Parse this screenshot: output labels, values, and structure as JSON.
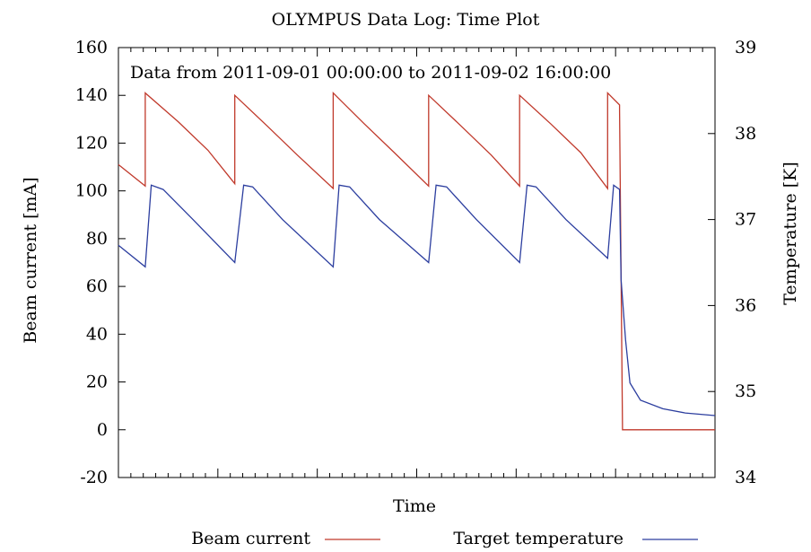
{
  "chart_data": {
    "type": "line",
    "title": "OLYMPUS Data Log: Time Plot",
    "annotation": "Data from 2011-09-01 00:00:00 to 2011-09-02 16:00:00",
    "xlabel": "Time",
    "ylabel_left": "Beam current [mA]",
    "ylabel_right": "Temperature [K]",
    "ylim_left": [
      -20,
      160
    ],
    "ylim_right": [
      34,
      39
    ],
    "yticks_left": [
      "-20",
      "0",
      "20",
      "40",
      "60",
      "80",
      "100",
      "120",
      "140",
      "160"
    ],
    "yticks_right": [
      "34",
      "35",
      "36",
      "37",
      "38",
      "39"
    ],
    "xlim": [
      0,
      40
    ],
    "grid": false,
    "legend_position": "bottom",
    "series": [
      {
        "name": "Beam current",
        "axis": "left",
        "color": "#c0392b",
        "points": [
          [
            0.0,
            111
          ],
          [
            1.8,
            102
          ],
          [
            1.8,
            141
          ],
          [
            4.0,
            129
          ],
          [
            6.0,
            117
          ],
          [
            7.8,
            103
          ],
          [
            7.8,
            140
          ],
          [
            10.0,
            127
          ],
          [
            12.0,
            115
          ],
          [
            14.4,
            101
          ],
          [
            14.4,
            141
          ],
          [
            16.5,
            128
          ],
          [
            18.5,
            116
          ],
          [
            20.8,
            102
          ],
          [
            20.8,
            140
          ],
          [
            23.0,
            127
          ],
          [
            25.0,
            115
          ],
          [
            26.9,
            102
          ],
          [
            26.9,
            140
          ],
          [
            29.0,
            128
          ],
          [
            31.0,
            116
          ],
          [
            32.8,
            101
          ],
          [
            32.8,
            141
          ],
          [
            33.6,
            136
          ],
          [
            33.6,
            134
          ],
          [
            33.8,
            0
          ],
          [
            40.0,
            0
          ]
        ]
      },
      {
        "name": "Target temperature",
        "axis": "right",
        "color": "#2c3e9f",
        "points": [
          [
            0.0,
            36.7
          ],
          [
            1.8,
            36.45
          ],
          [
            2.2,
            37.4
          ],
          [
            3.0,
            37.35
          ],
          [
            5.0,
            37.0
          ],
          [
            7.8,
            36.5
          ],
          [
            8.4,
            37.4
          ],
          [
            9.0,
            37.38
          ],
          [
            11.0,
            37.0
          ],
          [
            14.4,
            36.45
          ],
          [
            14.8,
            37.4
          ],
          [
            15.5,
            37.38
          ],
          [
            17.5,
            37.0
          ],
          [
            20.8,
            36.5
          ],
          [
            21.3,
            37.4
          ],
          [
            22.0,
            37.38
          ],
          [
            24.0,
            37.0
          ],
          [
            26.9,
            36.5
          ],
          [
            27.4,
            37.4
          ],
          [
            28.0,
            37.38
          ],
          [
            30.0,
            37.0
          ],
          [
            32.8,
            36.55
          ],
          [
            33.2,
            37.4
          ],
          [
            33.6,
            37.35
          ],
          [
            33.7,
            36.3
          ],
          [
            34.0,
            35.6
          ],
          [
            34.3,
            35.1
          ],
          [
            35.0,
            34.9
          ],
          [
            36.5,
            34.8
          ],
          [
            38.0,
            34.75
          ],
          [
            40.0,
            34.72
          ]
        ]
      }
    ]
  },
  "colors": {
    "beam": "#c0392b",
    "temperature": "#2c3e9f"
  }
}
